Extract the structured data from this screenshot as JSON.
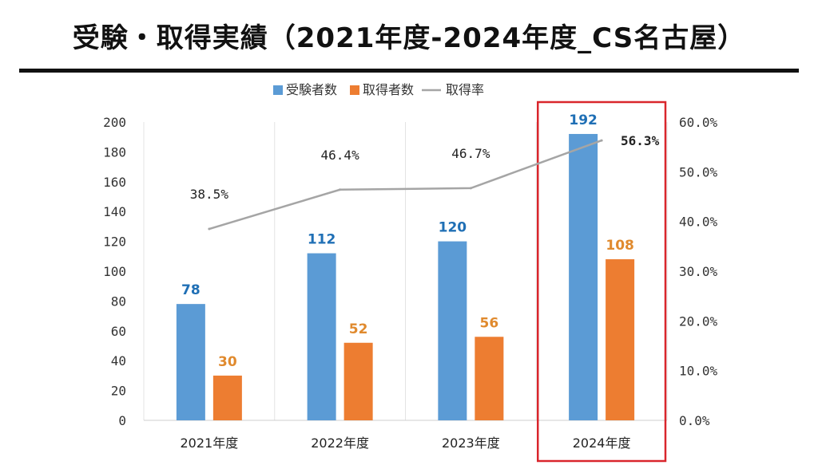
{
  "page": {
    "title": "受験・取得実績（2021年度-2024年度_CS名古屋）"
  },
  "chart_data": {
    "type": "bar",
    "categories": [
      "2021年度",
      "2022年度",
      "2023年度",
      "2024年度"
    ],
    "series": [
      {
        "name": "受験者数",
        "type": "bar",
        "axis": "left",
        "color": "#5b9bd5",
        "label_color": "#1f6fb5",
        "values": [
          78,
          112,
          120,
          192
        ]
      },
      {
        "name": "取得者数",
        "type": "bar",
        "axis": "left",
        "color": "#ed7d31",
        "label_color": "#e08a2e",
        "values": [
          30,
          52,
          56,
          108
        ]
      },
      {
        "name": "取得率",
        "type": "line",
        "axis": "right",
        "color": "#a5a5a5",
        "values": [
          38.5,
          46.4,
          46.7,
          56.3
        ],
        "labels": [
          "38.5%",
          "46.4%",
          "46.7%",
          "56.3%"
        ]
      }
    ],
    "ylim": [
      0,
      200
    ],
    "y_ticks": [
      "0",
      "20",
      "40",
      "60",
      "80",
      "100",
      "120",
      "140",
      "160",
      "180",
      "200"
    ],
    "y2lim": [
      0,
      60
    ],
    "y2_ticks": [
      "0.0%",
      "10.0%",
      "20.0%",
      "30.0%",
      "40.0%",
      "50.0%",
      "60.0%"
    ],
    "legend_position": "top-center",
    "highlight": {
      "category": "2024年度",
      "border_color": "#d9262c",
      "label_color": "#d9262c"
    }
  }
}
